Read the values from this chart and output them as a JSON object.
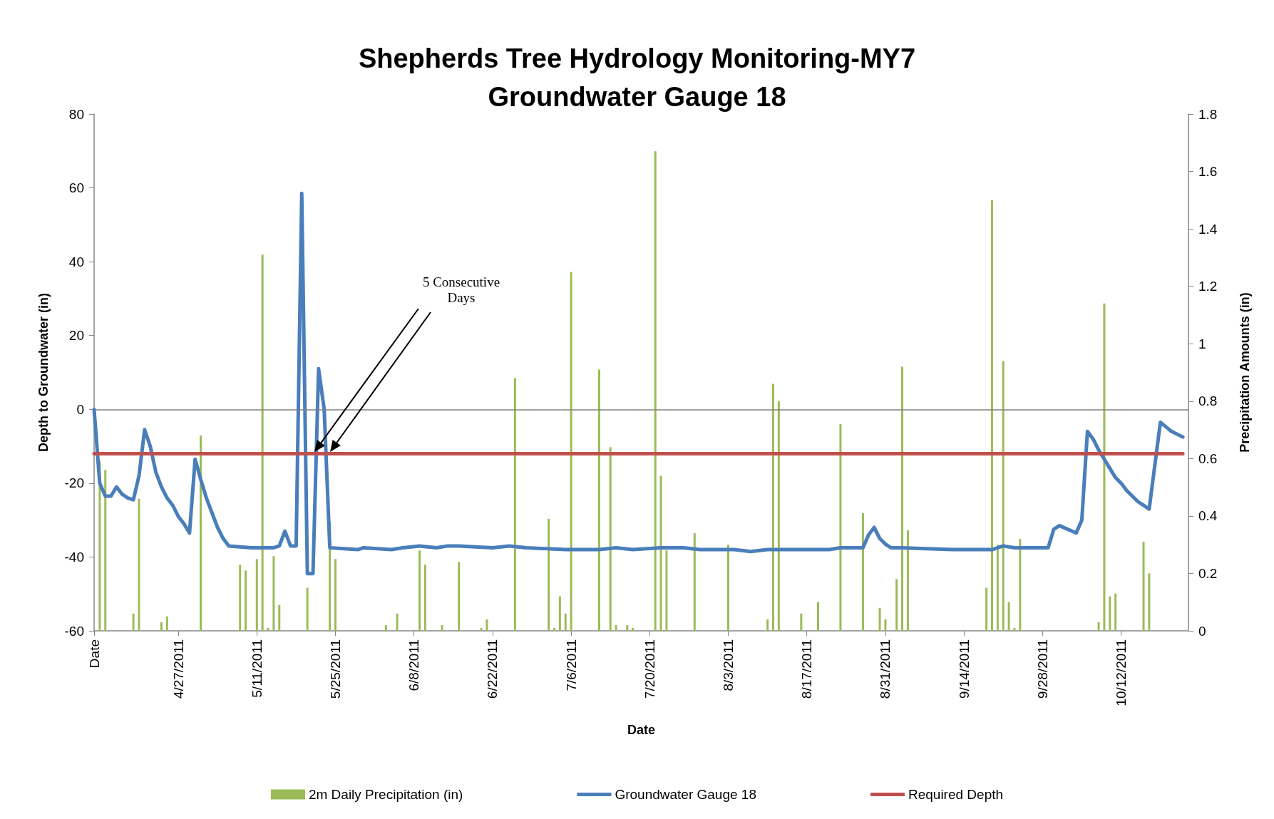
{
  "chart_data": {
    "type": "line",
    "title": "Shepherds Tree Hydrology Monitoring-MY7",
    "subtitle": "Groundwater Gauge 18",
    "xlabel": "Date",
    "ylabel": "Depth to Groundwater (in)",
    "y2label": "Precipitation Amounts (in)",
    "xlim": [
      "2011-04-12",
      "2011-10-24"
    ],
    "xticks": [
      {
        "value": "2011-04-12",
        "label": "Date"
      },
      {
        "value": "2011-04-27",
        "label": "4/27/2011"
      },
      {
        "value": "2011-05-11",
        "label": "5/11/2011"
      },
      {
        "value": "2011-05-25",
        "label": "5/25/2011"
      },
      {
        "value": "2011-06-08",
        "label": "6/8/2011"
      },
      {
        "value": "2011-06-22",
        "label": "6/22/2011"
      },
      {
        "value": "2011-07-06",
        "label": "7/6/2011"
      },
      {
        "value": "2011-07-20",
        "label": "7/20/2011"
      },
      {
        "value": "2011-08-03",
        "label": "8/3/2011"
      },
      {
        "value": "2011-08-17",
        "label": "8/17/2011"
      },
      {
        "value": "2011-08-31",
        "label": "8/31/2011"
      },
      {
        "value": "2011-09-14",
        "label": "9/14/2011"
      },
      {
        "value": "2011-09-28",
        "label": "9/28/2011"
      },
      {
        "value": "2011-10-12",
        "label": "10/12/2011"
      }
    ],
    "ylim": [
      -60,
      80
    ],
    "yticks": [
      -60,
      -40,
      -20,
      0,
      20,
      40,
      60,
      80
    ],
    "y2lim": [
      0,
      1.8
    ],
    "y2ticks": [
      0,
      0.2,
      0.4,
      0.6,
      0.8,
      1,
      1.2,
      1.4,
      1.6,
      1.8
    ],
    "grid": false,
    "legend": "bottom",
    "marker": "none",
    "line_style": "solid",
    "ref_lines": [
      {
        "axis": "y",
        "value": 0,
        "color": "#808080"
      }
    ],
    "annotations": [
      "5 Consecutive Days"
    ],
    "series": [
      {
        "name": "2m Daily Precipitation (in)",
        "type": "bar",
        "axis": "y2",
        "color": "#9bbb59",
        "x": [
          "2011-04-13",
          "2011-04-14",
          "2011-04-19",
          "2011-04-20",
          "2011-04-24",
          "2011-04-25",
          "2011-05-01",
          "2011-05-08",
          "2011-05-09",
          "2011-05-11",
          "2011-05-12",
          "2011-05-13",
          "2011-05-14",
          "2011-05-15",
          "2011-05-20",
          "2011-05-24",
          "2011-05-25",
          "2011-06-03",
          "2011-06-05",
          "2011-06-09",
          "2011-06-10",
          "2011-06-13",
          "2011-06-16",
          "2011-06-20",
          "2011-06-21",
          "2011-06-26",
          "2011-07-02",
          "2011-07-03",
          "2011-07-04",
          "2011-07-05",
          "2011-07-06",
          "2011-07-11",
          "2011-07-13",
          "2011-07-14",
          "2011-07-16",
          "2011-07-17",
          "2011-07-21",
          "2011-07-22",
          "2011-07-23",
          "2011-07-28",
          "2011-08-03",
          "2011-08-10",
          "2011-08-11",
          "2011-08-12",
          "2011-08-16",
          "2011-08-19",
          "2011-08-23",
          "2011-08-27",
          "2011-08-30",
          "2011-08-31",
          "2011-09-02",
          "2011-09-03",
          "2011-09-04",
          "2011-09-18",
          "2011-09-19",
          "2011-09-20",
          "2011-09-21",
          "2011-09-22",
          "2011-09-23",
          "2011-09-24",
          "2011-10-08",
          "2011-10-09",
          "2011-10-10",
          "2011-10-11",
          "2011-10-16",
          "2011-10-17"
        ],
        "values": [
          0.59,
          0.56,
          0.06,
          0.46,
          0.03,
          0.05,
          0.68,
          0.23,
          0.21,
          0.25,
          1.31,
          0.01,
          0.26,
          0.09,
          0.15,
          0.38,
          0.25,
          0.02,
          0.06,
          0.28,
          0.23,
          0.02,
          0.24,
          0.01,
          0.04,
          0.88,
          0.39,
          0.01,
          0.12,
          0.06,
          1.25,
          0.91,
          0.64,
          0.02,
          0.02,
          0.01,
          1.67,
          0.54,
          0.28,
          0.34,
          0.3,
          0.04,
          0.86,
          0.8,
          0.06,
          0.1,
          0.72,
          0.41,
          0.08,
          0.04,
          0.18,
          0.92,
          0.35,
          0.15,
          1.5,
          0.3,
          0.94,
          0.1,
          0.01,
          0.32,
          0.03,
          1.14,
          0.12,
          0.13,
          0.31,
          0.2
        ]
      },
      {
        "name": "Groundwater Gauge 18",
        "color": "#4a7ebb",
        "x": [
          "2011-04-12",
          "2011-04-13",
          "2011-04-14",
          "2011-04-15",
          "2011-04-16",
          "2011-04-17",
          "2011-04-18",
          "2011-04-19",
          "2011-04-20",
          "2011-04-21",
          "2011-04-22",
          "2011-04-23",
          "2011-04-24",
          "2011-04-25",
          "2011-04-26",
          "2011-04-27",
          "2011-04-28",
          "2011-04-29",
          "2011-04-30",
          "2011-05-01",
          "2011-05-02",
          "2011-05-03",
          "2011-05-04",
          "2011-05-05",
          "2011-05-06",
          "2011-05-10",
          "2011-05-14",
          "2011-05-15",
          "2011-05-16",
          "2011-05-17",
          "2011-05-18",
          "2011-05-19",
          "2011-05-20",
          "2011-05-21",
          "2011-05-22",
          "2011-05-23",
          "2011-05-24",
          "2011-05-29",
          "2011-05-30",
          "2011-06-04",
          "2011-06-06",
          "2011-06-09",
          "2011-06-12",
          "2011-06-14",
          "2011-06-16",
          "2011-06-22",
          "2011-06-25",
          "2011-06-28",
          "2011-07-05",
          "2011-07-11",
          "2011-07-14",
          "2011-07-17",
          "2011-07-22",
          "2011-07-26",
          "2011-07-29",
          "2011-08-01",
          "2011-08-04",
          "2011-08-07",
          "2011-08-10",
          "2011-08-16",
          "2011-08-21",
          "2011-08-23",
          "2011-08-27",
          "2011-08-28",
          "2011-08-29",
          "2011-08-30",
          "2011-08-31",
          "2011-09-01",
          "2011-09-03",
          "2011-09-12",
          "2011-09-19",
          "2011-09-21",
          "2011-09-23",
          "2011-09-29",
          "2011-09-30",
          "2011-10-01",
          "2011-10-04",
          "2011-10-05",
          "2011-10-06",
          "2011-10-07",
          "2011-10-08",
          "2011-10-09",
          "2011-10-10",
          "2011-10-11",
          "2011-10-12",
          "2011-10-13",
          "2011-10-14",
          "2011-10-15",
          "2011-10-16",
          "2011-10-17",
          "2011-10-19",
          "2011-10-21",
          "2011-10-23"
        ],
        "values": [
          0,
          -20,
          -23.5,
          -23.5,
          -21,
          -23,
          -24,
          -24.5,
          -18,
          -5.5,
          -10,
          -17,
          -21,
          -24,
          -26,
          -29,
          -31,
          -33.5,
          -13.5,
          -19,
          -24,
          -28,
          -32,
          -35,
          -37,
          -37.5,
          -37.5,
          -37,
          -33,
          -37,
          -37,
          58.5,
          -44.5,
          -44.5,
          11,
          0,
          -37.5,
          -38,
          -37.5,
          -38,
          -37.5,
          -37,
          -37.5,
          -37,
          -37,
          -37.5,
          -37,
          -37.5,
          -38,
          -38,
          -37.5,
          -38,
          -37.5,
          -37.5,
          -38,
          -38,
          -38,
          -38.5,
          -38,
          -38,
          -38,
          -37.5,
          -37.5,
          -34,
          -32,
          -35,
          -36.5,
          -37.5,
          -37.5,
          -38,
          -38,
          -37,
          -37.5,
          -37.5,
          -32.5,
          -31.5,
          -33.5,
          -30,
          -6,
          -8,
          -11,
          -13.5,
          -16,
          -18.5,
          -20,
          -22,
          -23.5,
          -25,
          -26,
          -27,
          -3.5,
          -6,
          -7.5
        ]
      },
      {
        "name": "Required Depth",
        "color": "#c0504d",
        "x": [
          "2011-04-12",
          "2011-10-23"
        ],
        "values": [
          -12,
          -12
        ]
      }
    ]
  }
}
